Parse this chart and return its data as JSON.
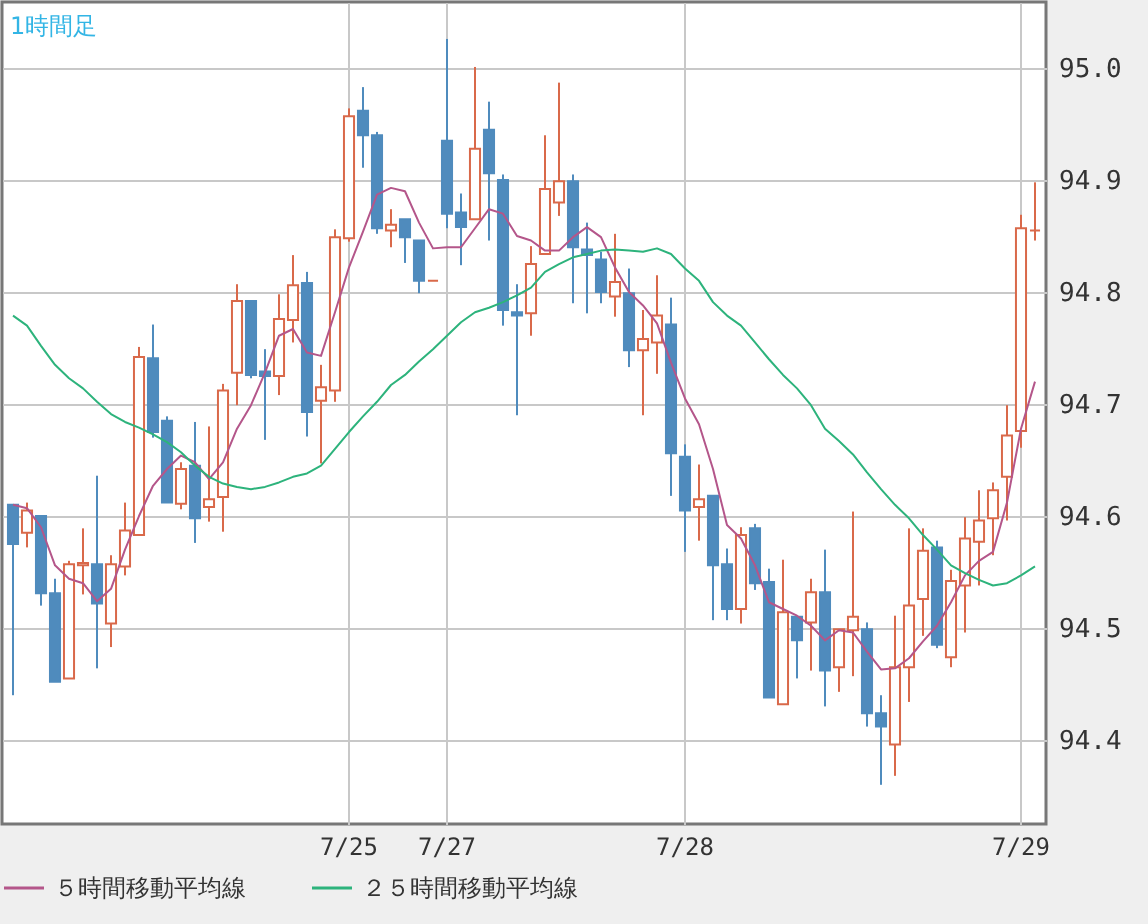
{
  "chart_data": {
    "type": "candlestick",
    "title": "1時間足",
    "categories": [
      null,
      null,
      null,
      null,
      null,
      null,
      null,
      null,
      null,
      null,
      null,
      null,
      null,
      null,
      null,
      null,
      null,
      null,
      null,
      null,
      null,
      null,
      null,
      null,
      "7/25",
      null,
      null,
      null,
      null,
      null,
      null,
      "7/27",
      null,
      null,
      null,
      null,
      null,
      null,
      null,
      null,
      null,
      null,
      null,
      null,
      null,
      null,
      null,
      null,
      "7/28",
      null,
      null,
      null,
      null,
      null,
      null,
      null,
      null,
      null,
      null,
      null,
      null,
      null,
      null,
      null,
      null,
      null,
      null,
      null,
      null,
      null,
      null,
      null,
      "7/29",
      null
    ],
    "ohlc": [
      [
        94.61,
        94.61,
        94.44,
        94.575
      ],
      [
        94.585,
        94.612,
        94.572,
        94.605
      ],
      [
        94.6,
        94.6,
        94.52,
        94.531
      ],
      [
        94.531,
        94.544,
        94.452,
        94.452
      ],
      [
        94.455,
        94.56,
        94.455,
        94.557
      ],
      [
        94.556,
        94.589,
        94.53,
        94.558
      ],
      [
        94.557,
        94.636,
        94.464,
        94.522
      ],
      [
        94.504,
        94.565,
        94.483,
        94.557
      ],
      [
        94.555,
        94.612,
        94.547,
        94.587
      ],
      [
        94.583,
        94.751,
        94.583,
        94.742
      ],
      [
        94.741,
        94.771,
        94.67,
        94.675
      ],
      [
        94.685,
        94.689,
        94.612,
        94.612
      ],
      [
        94.611,
        94.648,
        94.606,
        94.642
      ],
      [
        94.645,
        94.684,
        94.576,
        94.598
      ],
      [
        94.608,
        94.68,
        94.595,
        94.615
      ],
      [
        94.617,
        94.718,
        94.586,
        94.712
      ],
      [
        94.728,
        94.807,
        94.699,
        94.792
      ],
      [
        94.792,
        94.792,
        94.723,
        94.726
      ],
      [
        94.729,
        94.749,
        94.668,
        94.725
      ],
      [
        94.725,
        94.798,
        94.708,
        94.776
      ],
      [
        94.775,
        94.833,
        94.755,
        94.806
      ],
      [
        94.808,
        94.818,
        94.671,
        94.693
      ],
      [
        94.703,
        94.735,
        94.647,
        94.715
      ],
      [
        94.712,
        94.856,
        94.702,
        94.849
      ],
      [
        94.848,
        94.964,
        94.845,
        94.957
      ],
      [
        94.962,
        94.983,
        94.911,
        94.94
      ],
      [
        94.94,
        94.943,
        94.852,
        94.857
      ],
      [
        94.855,
        94.874,
        94.84,
        94.86
      ],
      [
        94.865,
        94.865,
        94.826,
        94.849
      ],
      [
        94.846,
        94.846,
        94.799,
        94.81
      ],
      [
        94.81,
        94.81,
        94.81,
        94.81
      ],
      [
        94.935,
        95.026,
        94.857,
        94.87
      ],
      [
        94.871,
        94.888,
        94.824,
        94.858
      ],
      [
        94.865,
        95.001,
        94.865,
        94.928
      ],
      [
        94.945,
        94.97,
        94.846,
        94.906
      ],
      [
        94.9,
        94.905,
        94.77,
        94.784
      ],
      [
        94.782,
        94.807,
        94.69,
        94.779
      ],
      [
        94.781,
        94.841,
        94.761,
        94.825
      ],
      [
        94.834,
        94.94,
        94.834,
        94.892
      ],
      [
        94.88,
        94.987,
        94.868,
        94.899
      ],
      [
        94.899,
        94.905,
        94.79,
        94.84
      ],
      [
        94.838,
        94.862,
        94.781,
        94.833
      ],
      [
        94.829,
        94.836,
        94.79,
        94.8
      ],
      [
        94.796,
        94.852,
        94.778,
        94.809
      ],
      [
        94.799,
        94.821,
        94.733,
        94.748
      ],
      [
        94.748,
        94.784,
        94.69,
        94.758
      ],
      [
        94.755,
        94.815,
        94.727,
        94.779
      ],
      [
        94.771,
        94.795,
        94.618,
        94.656
      ],
      [
        94.653,
        94.664,
        94.568,
        94.605
      ],
      [
        94.608,
        94.646,
        94.578,
        94.615
      ],
      [
        94.618,
        94.618,
        94.507,
        94.556
      ],
      [
        94.557,
        94.571,
        94.507,
        94.517
      ],
      [
        94.517,
        94.59,
        94.504,
        94.583
      ],
      [
        94.589,
        94.593,
        94.534,
        94.54
      ],
      [
        94.541,
        94.553,
        94.438,
        94.438
      ],
      [
        94.432,
        94.561,
        94.432,
        94.514
      ],
      [
        94.51,
        94.51,
        94.455,
        94.489
      ],
      [
        94.505,
        94.544,
        94.462,
        94.532
      ],
      [
        94.532,
        94.57,
        94.43,
        94.462
      ],
      [
        94.465,
        94.499,
        94.443,
        94.499
      ],
      [
        94.498,
        94.604,
        94.457,
        94.51
      ],
      [
        94.499,
        94.505,
        94.412,
        94.424
      ],
      [
        94.424,
        94.44,
        94.36,
        94.412
      ],
      [
        94.396,
        94.511,
        94.368,
        94.465
      ],
      [
        94.465,
        94.589,
        94.434,
        94.52
      ],
      [
        94.526,
        94.589,
        94.493,
        94.569
      ],
      [
        94.572,
        94.578,
        94.482,
        94.485
      ],
      [
        94.474,
        94.552,
        94.465,
        94.542
      ],
      [
        94.538,
        94.599,
        94.496,
        94.58
      ],
      [
        94.577,
        94.623,
        94.538,
        94.596
      ],
      [
        94.598,
        94.63,
        94.565,
        94.623
      ],
      [
        94.635,
        94.699,
        94.596,
        94.672
      ],
      [
        94.676,
        94.869,
        94.661,
        94.857
      ],
      [
        94.855,
        94.898,
        94.846,
        94.855
      ]
    ],
    "series": [
      {
        "type": "line",
        "name": "５時間移動平均線",
        "color": "#b4568a",
        "values": [
          94.61,
          94.607,
          94.59,
          94.556,
          94.544,
          94.54,
          94.524,
          94.535,
          94.57,
          94.6,
          94.627,
          94.642,
          94.654,
          94.648,
          94.633,
          94.648,
          94.678,
          94.699,
          94.728,
          94.761,
          94.767,
          94.746,
          94.743,
          94.782,
          94.822,
          94.854,
          94.887,
          94.893,
          94.89,
          94.862,
          94.839,
          94.84,
          94.84,
          94.857,
          94.874,
          94.87,
          94.85,
          94.846,
          94.837,
          94.837,
          94.849,
          94.858,
          94.849,
          94.822,
          94.8,
          94.788,
          94.772,
          94.737,
          94.705,
          94.682,
          94.642,
          94.592,
          94.58,
          94.556,
          94.523,
          94.517,
          94.511,
          94.502,
          94.489,
          94.498,
          94.496,
          94.479,
          94.463,
          94.464,
          94.473,
          94.488,
          94.502,
          94.523,
          94.547,
          94.56,
          94.568,
          94.612,
          94.678,
          94.72
        ]
      },
      {
        "type": "line",
        "name": "２５時間移動平均線",
        "color": "#2db37c",
        "values": [
          94.779,
          94.77,
          94.752,
          94.735,
          94.723,
          94.714,
          94.702,
          94.691,
          94.684,
          94.679,
          94.673,
          94.666,
          94.657,
          94.645,
          94.635,
          94.629,
          94.626,
          94.624,
          94.626,
          94.63,
          94.635,
          94.638,
          94.645,
          94.66,
          94.675,
          94.689,
          94.702,
          94.717,
          94.726,
          94.738,
          94.749,
          94.761,
          94.773,
          94.782,
          94.786,
          94.791,
          94.797,
          94.804,
          94.818,
          94.825,
          94.831,
          94.834,
          94.837,
          94.838,
          94.837,
          94.836,
          94.839,
          94.834,
          94.821,
          94.81,
          94.791,
          94.779,
          94.77,
          94.755,
          94.74,
          94.726,
          94.714,
          94.699,
          94.678,
          94.667,
          94.655,
          94.639,
          94.624,
          94.61,
          94.598,
          94.583,
          94.57,
          94.556,
          94.549,
          94.543,
          94.538,
          94.54,
          94.547,
          94.555
        ]
      }
    ],
    "ylim": [
      94.325,
      95.059
    ],
    "yticks": [
      94.4,
      94.5,
      94.6,
      94.7,
      94.8,
      94.9,
      {
        "value": 95,
        "label": "95.0"
      }
    ],
    "grid": true,
    "legend": "bottom"
  }
}
